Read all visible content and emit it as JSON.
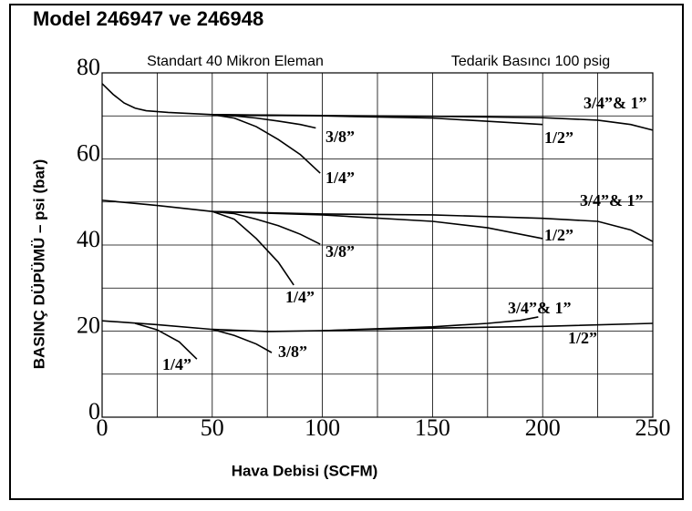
{
  "chart_data": {
    "type": "line",
    "title": "Model 246947 ve 246948",
    "x_label": "Hava Debisi (SCFM)",
    "y_label": "BASINÇ DÜPÜMÜ – psi (bar)",
    "annotations": [
      "Standart 40 Mikron Eleman",
      "Tedarik Basıncı 100 psig"
    ],
    "xlim": [
      0,
      250
    ],
    "ylim": [
      0,
      80
    ],
    "xticks": [
      0,
      50,
      100,
      150,
      200,
      250
    ],
    "yticks": [
      0,
      20,
      40,
      60,
      80
    ],
    "x_minor_ticks": [
      25,
      75,
      125,
      175,
      225
    ],
    "y_minor_ticks": [
      10,
      30,
      50,
      70
    ],
    "grid": true,
    "series": [
      {
        "name": "3/4”& 1”",
        "color": "#000000",
        "x": [
          0,
          5,
          10,
          15,
          20,
          30,
          50,
          100,
          150,
          200,
          225,
          240,
          250
        ],
        "values": [
          77.5,
          75,
          73,
          71.8,
          71.2,
          70.8,
          70.3,
          70.1,
          69.9,
          69.6,
          69,
          68,
          66.7
        ]
      },
      {
        "name": "1/2”",
        "color": "#000000",
        "x": [
          50,
          100,
          150,
          200
        ],
        "values": [
          70.3,
          70,
          69.5,
          68
        ]
      },
      {
        "name": "3/8”",
        "color": "#000000",
        "x": [
          50,
          60,
          70,
          80,
          90,
          97
        ],
        "values": [
          70.3,
          70,
          69.5,
          68.8,
          68,
          67.2
        ]
      },
      {
        "name": "1/4”",
        "color": "#000000",
        "x": [
          50,
          60,
          70,
          80,
          90,
          99
        ],
        "values": [
          70.3,
          69.5,
          67.5,
          64.5,
          61,
          56.7
        ]
      },
      {
        "name": "3/4”& 1”",
        "color": "#000000",
        "x": [
          0,
          25,
          50,
          100,
          150,
          200,
          225,
          240,
          250
        ],
        "values": [
          50.4,
          49.2,
          47.8,
          47.2,
          47,
          46.2,
          45.5,
          43.5,
          40.8
        ]
      },
      {
        "name": "1/2”",
        "color": "#000000",
        "x": [
          50,
          100,
          150,
          175,
          200
        ],
        "values": [
          47.8,
          47,
          45.5,
          44,
          41.5
        ]
      },
      {
        "name": "3/8”",
        "color": "#000000",
        "x": [
          50,
          60,
          70,
          80,
          90,
          99
        ],
        "values": [
          47.8,
          47.3,
          46,
          44.5,
          42.5,
          40.2
        ]
      },
      {
        "name": "1/4”",
        "color": "#000000",
        "x": [
          50,
          60,
          70,
          80,
          87
        ],
        "values": [
          47.8,
          46,
          41.5,
          36,
          30.7
        ]
      },
      {
        "name": "3/4”& 1”",
        "color": "#000000",
        "x": [
          0,
          25,
          50,
          75,
          100,
          150,
          200,
          250
        ],
        "values": [
          22.4,
          21.5,
          20.4,
          19.9,
          20.1,
          20.7,
          21.1,
          21.8
        ]
      },
      {
        "name": "1/2”",
        "color": "#000000",
        "x": [
          100,
          150,
          175,
          190,
          198
        ],
        "values": [
          20.1,
          21,
          21.8,
          22.5,
          23.3
        ]
      },
      {
        "name": "3/8”",
        "color": "#000000",
        "x": [
          50,
          60,
          70,
          77
        ],
        "values": [
          20.4,
          19,
          17,
          15
        ]
      },
      {
        "name": "1/4”",
        "color": "#000000",
        "x": [
          15,
          25,
          35,
          43
        ],
        "values": [
          21.8,
          20.3,
          17.5,
          13.5
        ]
      }
    ]
  }
}
